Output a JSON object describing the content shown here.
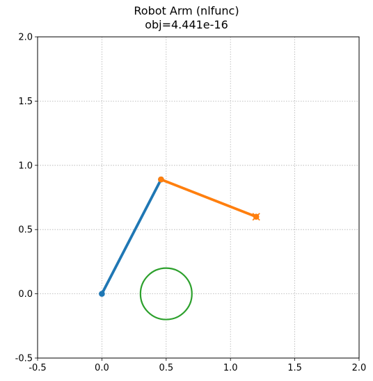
{
  "chart_data": {
    "type": "line",
    "title": "Robot Arm (nlfunc)",
    "subtitle": "obj=4.441e-16",
    "xlim": [
      -0.5,
      2.0
    ],
    "ylim": [
      -0.5,
      2.0
    ],
    "xticks": [
      "-0.5",
      "0.0",
      "0.5",
      "1.0",
      "1.5",
      "2.0"
    ],
    "yticks": [
      "-0.5",
      "0.0",
      "0.5",
      "1.0",
      "1.5",
      "2.0"
    ],
    "xtick_values": [
      -0.5,
      0.0,
      0.5,
      1.0,
      1.5,
      2.0
    ],
    "ytick_values": [
      -0.5,
      0.0,
      0.5,
      1.0,
      1.5,
      2.0
    ],
    "grid": true,
    "series": [
      {
        "color": "#1f77b4",
        "x": [
          0.0,
          0.46
        ],
        "y": [
          0.0,
          0.89
        ]
      },
      {
        "color": "#ff7f0e",
        "x": [
          0.46,
          1.2
        ],
        "y": [
          0.89,
          0.6
        ]
      }
    ],
    "target": {
      "x": 1.2,
      "y": 0.6,
      "marker": "x",
      "color": "#ff7f0e"
    },
    "obstacle": {
      "type": "circle",
      "cx": 0.5,
      "cy": 0.0,
      "r": 0.2,
      "color": "#2ca02c"
    }
  }
}
